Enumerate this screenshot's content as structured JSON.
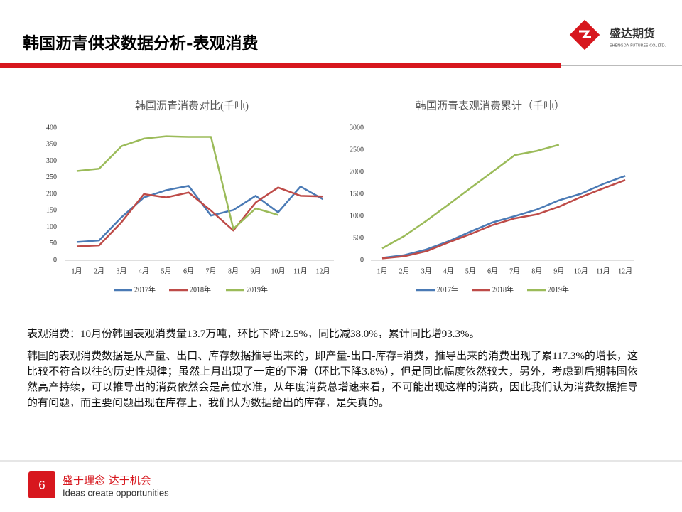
{
  "header": {
    "title": "韩国沥青供求数据分析-表观消费"
  },
  "logo": {
    "name": "盛达期货",
    "subtitle": "SHENGDA FUTURES CO.,LTD."
  },
  "chart_data": [
    {
      "type": "line",
      "title": "韩国沥青消费对比(千吨)",
      "categories": [
        "1月",
        "2月",
        "3月",
        "4月",
        "5月",
        "6月",
        "7月",
        "8月",
        "9月",
        "10月",
        "11月",
        "12月"
      ],
      "ylim": [
        0,
        400
      ],
      "yticks": [
        0,
        50,
        100,
        150,
        200,
        250,
        300,
        350,
        400
      ],
      "grid": false,
      "legend": "bottom",
      "series": [
        {
          "name": "2017年",
          "color": "#4a7ab5",
          "values": [
            55,
            60,
            130,
            190,
            212,
            225,
            135,
            152,
            195,
            145,
            223,
            185
          ]
        },
        {
          "name": "2018年",
          "color": "#be4b48",
          "values": [
            42,
            45,
            115,
            200,
            190,
            205,
            150,
            90,
            175,
            220,
            195,
            193
          ]
        },
        {
          "name": "2019年",
          "color": "#9bbb59",
          "values": [
            270,
            277,
            345,
            368,
            375,
            373,
            373,
            95,
            157,
            137,
            null,
            null
          ]
        }
      ]
    },
    {
      "type": "line",
      "title": "韩国沥青表观消费累计（千吨）",
      "categories": [
        "1月",
        "2月",
        "3月",
        "4月",
        "5月",
        "6月",
        "7月",
        "8月",
        "9月",
        "10月",
        "11月",
        "12月"
      ],
      "ylim": [
        0,
        3000
      ],
      "yticks": [
        0,
        500,
        1000,
        1500,
        2000,
        2500,
        3000
      ],
      "grid": false,
      "legend": "bottom",
      "series": [
        {
          "name": "2017年",
          "color": "#4a7ab5",
          "values": [
            55,
            115,
            245,
            430,
            650,
            860,
            1000,
            1150,
            1360,
            1510,
            1730,
            1915
          ]
        },
        {
          "name": "2018年",
          "color": "#be4b48",
          "values": [
            42,
            90,
            205,
            405,
            595,
            800,
            950,
            1040,
            1215,
            1435,
            1630,
            1820
          ]
        },
        {
          "name": "2019年",
          "color": "#9bbb59",
          "values": [
            270,
            550,
            895,
            1265,
            1640,
            2010,
            2385,
            2480,
            2620,
            null,
            null,
            null
          ]
        }
      ]
    }
  ],
  "paragraphs": [
    "表观消费：10月份韩国表观消费量13.7万吨，环比下降12.5%，同比减38.0%，累计同比增93.3%。",
    "韩国的表观消费数据是从产量、出口、库存数据推导出来的，即产量-出口-库存=消费，推导出来的消费出现了累117.3%的增长，这比较不符合以往的历史性规律；虽然上月出现了一定的下滑（环比下降3.8%），但是同比幅度依然较大，另外，考虑到后期韩国依然高产持续，可以推导出的消费依然会是高位水准，从年度消费总增速来看，不可能出现这样的消费，因此我们认为消费数据推导的有问题，而主要问题出现在库存上，我们认为数据给出的库存，是失真的。"
  ],
  "footer": {
    "page": "6",
    "slogan": "盛于理念 达于机会",
    "slogan_en": "Ideas create opportunities"
  }
}
